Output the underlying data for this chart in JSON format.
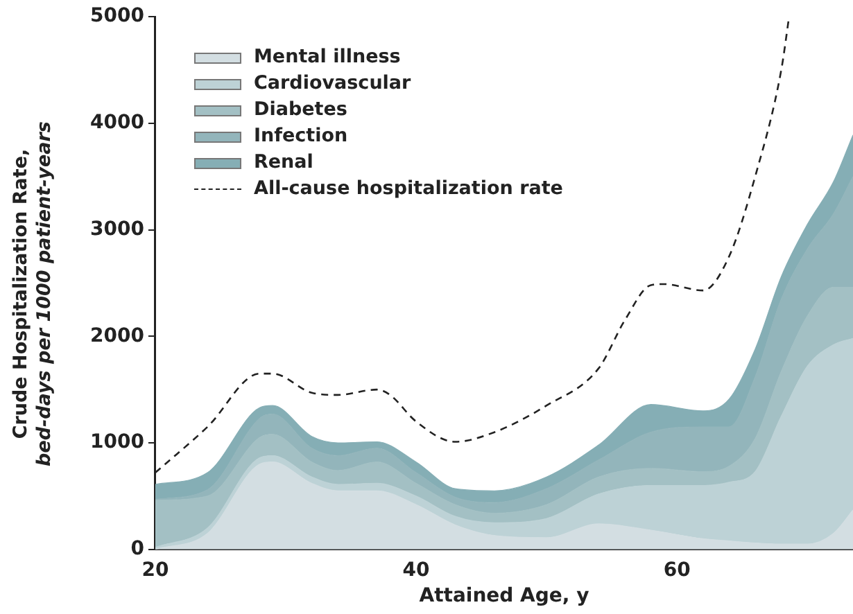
{
  "chart_data": {
    "type": "area",
    "stacked": true,
    "xlabel": "Attained Age, y",
    "ylabel": "Crude Hospitalization Rate,\nbed-days per 1000 patient-years",
    "x": [
      20,
      24,
      28,
      29,
      32,
      34,
      37,
      40,
      43,
      46,
      50,
      54,
      58,
      62,
      64,
      66,
      68,
      70,
      72,
      73.5
    ],
    "series": [
      {
        "name": "Mental illness",
        "color": "#d3dee2",
        "values": [
          0,
          150,
          800,
          820,
          620,
          550,
          550,
          420,
          230,
          130,
          110,
          240,
          180,
          100,
          80,
          60,
          50,
          50,
          150,
          370
        ]
      },
      {
        "name": "Cardiovascular",
        "color": "#bdd2d6",
        "values": [
          20,
          50,
          60,
          60,
          60,
          60,
          70,
          80,
          80,
          120,
          180,
          280,
          420,
          500,
          550,
          670,
          1200,
          1670,
          1770,
          1610
        ]
      },
      {
        "name": "Diabetes",
        "color": "#a3c0c4",
        "values": [
          440,
          300,
          190,
          200,
          140,
          130,
          200,
          120,
          110,
          90,
          130,
          160,
          160,
          130,
          150,
          310,
          420,
          470,
          540,
          480
        ]
      },
      {
        "name": "Infection",
        "color": "#93b5bb",
        "values": [
          10,
          60,
          180,
          190,
          130,
          140,
          130,
          100,
          70,
          100,
          150,
          160,
          340,
          420,
          370,
          580,
          680,
          630,
          690,
          1040
        ]
      },
      {
        "name": "Renal",
        "color": "#85aeb5",
        "values": [
          140,
          160,
          100,
          80,
          110,
          120,
          60,
          100,
          80,
          110,
          110,
          140,
          260,
          150,
          260,
          260,
          210,
          230,
          300,
          390
        ]
      },
      {
        "name": "All-cause hospitalization rate",
        "type": "line",
        "color": "#222222",
        "line_style": "dashed",
        "x": [
          20,
          24,
          28,
          29,
          32,
          34,
          37,
          38,
          40,
          43,
          46,
          50,
          54,
          56,
          58,
          59,
          62,
          64,
          66,
          68,
          68.6
        ],
        "values": [
          720,
          1150,
          1650,
          1650,
          1470,
          1450,
          1500,
          1450,
          1200,
          1010,
          1100,
          1350,
          1700,
          2150,
          2480,
          2490,
          2430,
          2750,
          3500,
          4500,
          5000
        ]
      }
    ],
    "xlim": [
      20,
      73.5
    ],
    "xticks": [
      20,
      40,
      60
    ],
    "ylim": [
      0,
      5000
    ],
    "yticks": [
      0,
      1000,
      2000,
      3000,
      4000,
      5000
    ],
    "grid": false,
    "legend": "top left",
    "marker": "none"
  }
}
